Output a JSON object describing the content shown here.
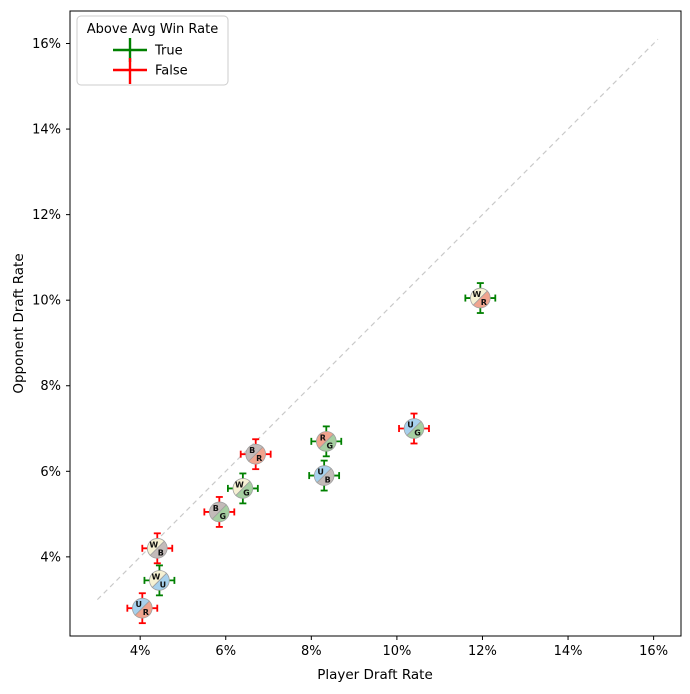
{
  "chart_data": {
    "type": "scatter",
    "title": "",
    "xlabel": "Player Draft Rate",
    "ylabel": "Opponent Draft Rate",
    "xlim": [
      2.36,
      16.64
    ],
    "ylim": [
      2.15,
      16.76
    ],
    "grid": false,
    "xticks": [
      {
        "value": 4,
        "label": "4%"
      },
      {
        "value": 6,
        "label": "6%"
      },
      {
        "value": 8,
        "label": "8%"
      },
      {
        "value": 10,
        "label": "10%"
      },
      {
        "value": 12,
        "label": "12%"
      },
      {
        "value": 14,
        "label": "14%"
      },
      {
        "value": 16,
        "label": "16%"
      }
    ],
    "yticks": [
      {
        "value": 4,
        "label": "4%"
      },
      {
        "value": 6,
        "label": "6%"
      },
      {
        "value": 8,
        "label": "8%"
      },
      {
        "value": 10,
        "label": "10%"
      },
      {
        "value": 12,
        "label": "12%"
      },
      {
        "value": 14,
        "label": "14%"
      },
      {
        "value": 16,
        "label": "16%"
      }
    ],
    "legend": {
      "title": "Above Avg Win Rate",
      "position": "upper-left",
      "entries": [
        {
          "label": "True",
          "color": "#008000"
        },
        {
          "label": "False",
          "color": "#ff0000"
        }
      ]
    },
    "reference_line": {
      "type": "identity",
      "style": "dashed",
      "x1": 3.0,
      "y1": 3.0,
      "x2": 16.1,
      "y2": 16.1,
      "color": "#c9c9c9"
    },
    "color_map": {
      "W": "#f6f1d3",
      "U": "#a7d1ed",
      "B": "#c3bbb9",
      "R": "#f0a48e",
      "G": "#a5cfa1"
    },
    "marker_edge_color": "#a0a0a0",
    "letter_color": "#111111",
    "errorbar": {
      "xerr": 0.35,
      "yerr": 0.35
    },
    "points": [
      {
        "pair": "WR",
        "x": 11.95,
        "y": 10.05,
        "above_avg_win_rate": true
      },
      {
        "pair": "UG",
        "x": 10.4,
        "y": 7.0,
        "above_avg_win_rate": false
      },
      {
        "pair": "RG",
        "x": 8.35,
        "y": 6.7,
        "above_avg_win_rate": true
      },
      {
        "pair": "UB",
        "x": 8.3,
        "y": 5.9,
        "above_avg_win_rate": true
      },
      {
        "pair": "BR",
        "x": 6.7,
        "y": 6.4,
        "above_avg_win_rate": false
      },
      {
        "pair": "WG",
        "x": 6.4,
        "y": 5.6,
        "above_avg_win_rate": true
      },
      {
        "pair": "BG",
        "x": 5.85,
        "y": 5.05,
        "above_avg_win_rate": false
      },
      {
        "pair": "WB",
        "x": 4.4,
        "y": 4.2,
        "above_avg_win_rate": false
      },
      {
        "pair": "WU",
        "x": 4.45,
        "y": 3.45,
        "above_avg_win_rate": true
      },
      {
        "pair": "UR",
        "x": 4.05,
        "y": 2.8,
        "above_avg_win_rate": false
      }
    ]
  }
}
